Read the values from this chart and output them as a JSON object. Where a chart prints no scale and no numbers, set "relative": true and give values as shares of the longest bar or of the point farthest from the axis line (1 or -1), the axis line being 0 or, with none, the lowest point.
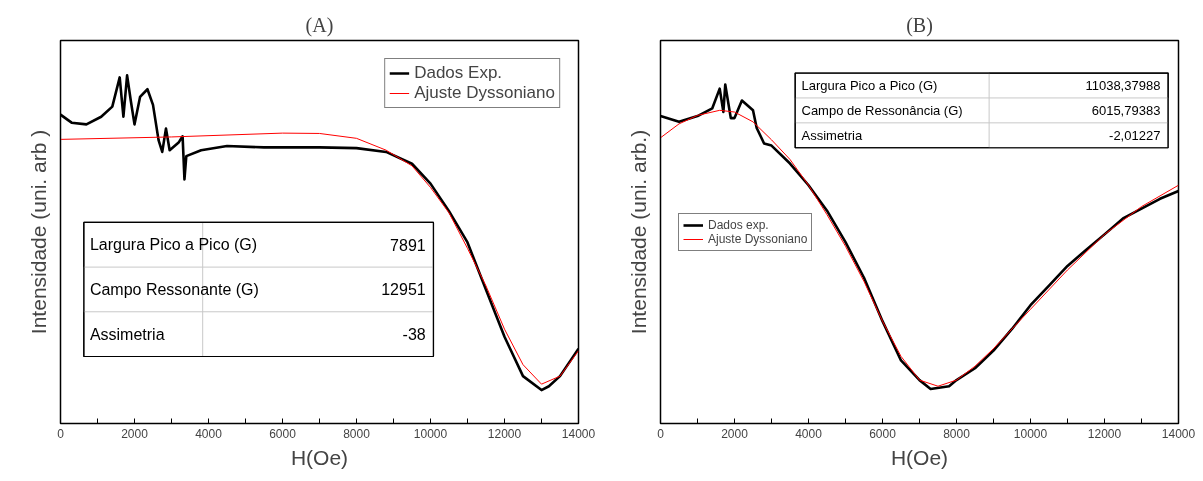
{
  "chart_data": [
    {
      "type": "line",
      "title": "(A)",
      "xlabel": "H(Oe)",
      "ylabel": "Intensidade (uni. arb )",
      "relative": true,
      "grid": false,
      "legend": "top right",
      "xlim": [
        0,
        14000
      ],
      "xticks": [
        0,
        {
          "value": 1000,
          "label": null
        },
        2000,
        {
          "value": 3000,
          "label": null
        },
        4000,
        {
          "value": 5000,
          "label": null
        },
        6000,
        {
          "value": 7000,
          "label": null
        },
        8000,
        {
          "value": 9000,
          "label": null
        },
        10000,
        {
          "value": 11000,
          "label": null
        },
        12000,
        {
          "value": 13000,
          "label": null
        },
        14000
      ],
      "annotations": [
        "Largura Pico a Pico (G)",
        "7891",
        "Campo Ressonante (G)",
        "12951",
        "Assimetria",
        "-38"
      ],
      "series": [
        {
          "name": "Dados Exp.",
          "color": "#000000",
          "x": [
            0,
            300,
            700,
            1100,
            1400,
            1600,
            1700,
            1800,
            1900,
            2000,
            2150,
            2350,
            2500,
            2650,
            2750,
            2850,
            2950,
            3200,
            3300,
            3350,
            3400,
            3800,
            4500,
            5500,
            7000,
            8000,
            8800,
            9500,
            10000,
            10500,
            11000,
            11500,
            12000,
            12500,
            13000,
            13200,
            13500,
            14000
          ],
          "values": [
            0.887,
            0.864,
            0.859,
            0.881,
            0.91,
            0.994,
            0.881,
            1.0,
            0.927,
            0.859,
            0.938,
            0.96,
            0.915,
            0.814,
            0.78,
            0.847,
            0.785,
            0.808,
            0.825,
            0.701,
            0.768,
            0.785,
            0.797,
            0.793,
            0.793,
            0.791,
            0.78,
            0.746,
            0.689,
            0.61,
            0.52,
            0.384,
            0.249,
            0.136,
            0.096,
            0.107,
            0.136,
            0.215
          ]
        },
        {
          "name": "Ajuste Dyssoniano",
          "color": "#ff0000",
          "x": [
            0,
            3000,
            6000,
            7000,
            8000,
            8800,
            9500,
            10000,
            10500,
            11000,
            11500,
            12000,
            12500,
            13000,
            13500,
            14000
          ],
          "values": [
            0.816,
            0.823,
            0.834,
            0.833,
            0.819,
            0.785,
            0.74,
            0.678,
            0.605,
            0.503,
            0.395,
            0.271,
            0.169,
            0.113,
            0.136,
            0.209
          ]
        }
      ]
    },
    {
      "type": "line",
      "title": "(B)",
      "xlabel": "H(Oe)",
      "ylabel": "Intensidade (uni. arb.)",
      "relative": true,
      "grid": false,
      "legend": "left",
      "xlim": [
        0,
        14000
      ],
      "xticks": [
        0,
        {
          "value": 1000,
          "label": null
        },
        2000,
        {
          "value": 3000,
          "label": null
        },
        4000,
        {
          "value": 5000,
          "label": null
        },
        6000,
        {
          "value": 7000,
          "label": null
        },
        8000,
        {
          "value": 9000,
          "label": null
        },
        10000,
        {
          "value": 11000,
          "label": null
        },
        12000,
        {
          "value": 13000,
          "label": null
        },
        14000
      ],
      "annotations": [
        "Largura Pico a Pico (G)",
        "11038,37988",
        "Campo de Ressonância (G)",
        "6015,79383",
        "Assimetria",
        "-2,01227"
      ],
      "series": [
        {
          "name": "Dados exp.",
          "color": "#000000",
          "x": [
            0,
            500,
            1000,
            1400,
            1600,
            1700,
            1750,
            1900,
            2000,
            2200,
            2500,
            2600,
            2800,
            3000,
            3500,
            4000,
            4500,
            5000,
            5500,
            6000,
            6500,
            7000,
            7300,
            7800,
            8000,
            8500,
            9000,
            9500,
            10000,
            10500,
            11000,
            11500,
            12000,
            12500,
            13000,
            13500,
            14000
          ],
          "values": [
            0.907,
            0.89,
            0.907,
            0.93,
            0.988,
            0.919,
            1.0,
            0.901,
            0.901,
            0.953,
            0.924,
            0.872,
            0.826,
            0.82,
            0.767,
            0.703,
            0.628,
            0.535,
            0.43,
            0.302,
            0.186,
            0.128,
            0.102,
            0.11,
            0.128,
            0.163,
            0.215,
            0.279,
            0.349,
            0.407,
            0.465,
            0.512,
            0.558,
            0.605,
            0.634,
            0.663,
            0.686
          ]
        },
        {
          "name": "Ajuste Dyssoniano",
          "color": "#ff0000",
          "x": [
            0,
            500,
            1000,
            1600,
            2000,
            2500,
            3000,
            3500,
            4000,
            4500,
            5000,
            5500,
            6000,
            6500,
            7000,
            7500,
            8000,
            8500,
            9000,
            10000,
            11000,
            12000,
            13000,
            14000
          ],
          "values": [
            0.843,
            0.884,
            0.909,
            0.924,
            0.919,
            0.89,
            0.837,
            0.779,
            0.703,
            0.616,
            0.523,
            0.419,
            0.302,
            0.198,
            0.128,
            0.11,
            0.128,
            0.169,
            0.221,
            0.337,
            0.453,
            0.558,
            0.64,
            0.703
          ]
        }
      ]
    }
  ]
}
